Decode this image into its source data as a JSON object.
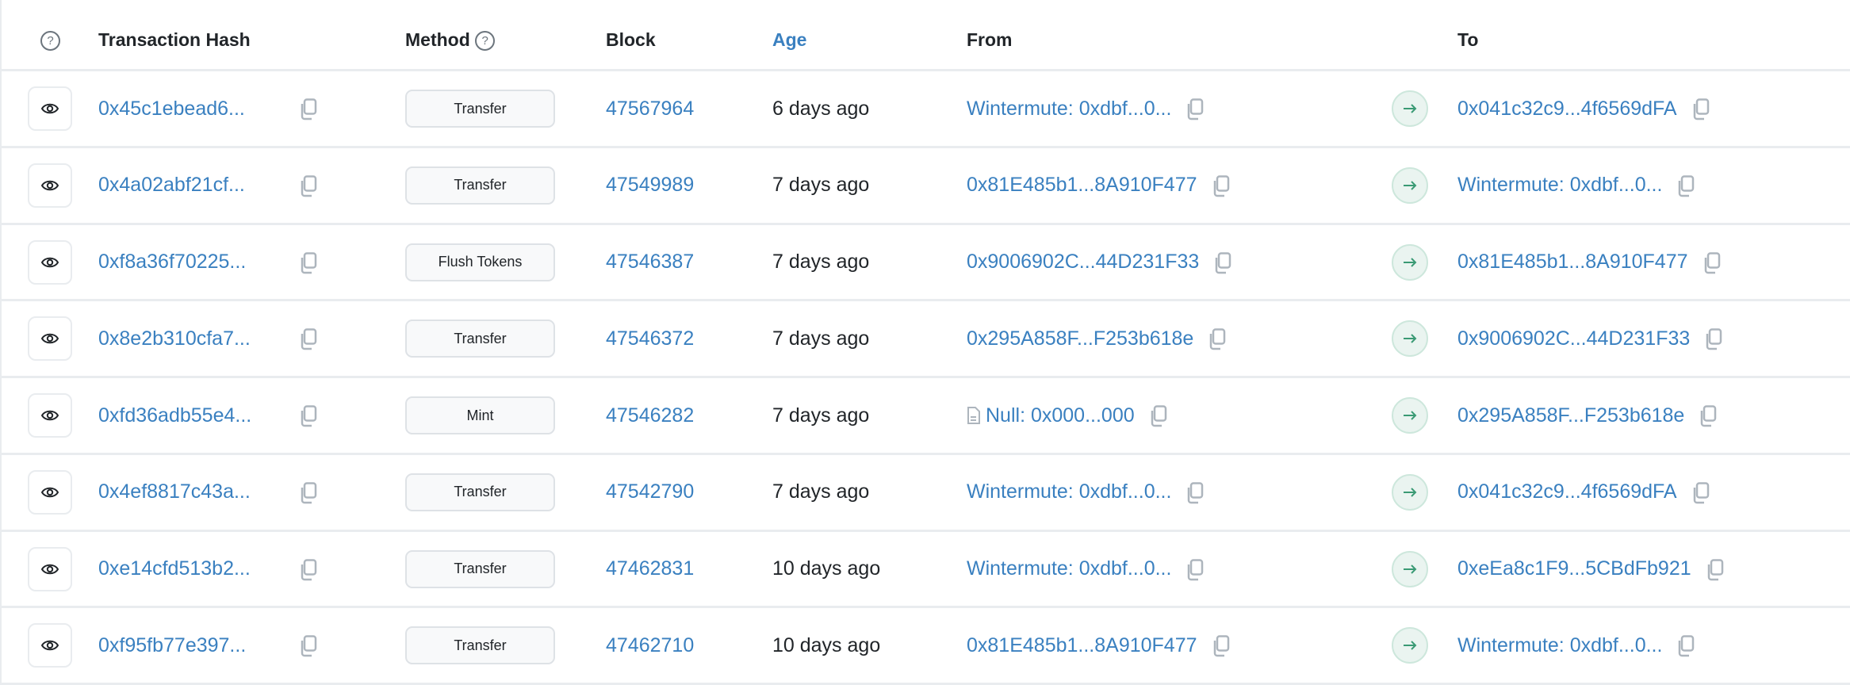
{
  "colors": {
    "link": "#3a80c0",
    "arrow": "#3a9a74",
    "border": "#e9ecef"
  },
  "header": {
    "help_icon": "question-circle-icon",
    "hash": "Transaction Hash",
    "method": "Method",
    "block": "Block",
    "age": "Age",
    "from": "From",
    "to": "To"
  },
  "rows": [
    {
      "hash": "0x45c1ebead6...",
      "method": "Transfer",
      "block": "47567964",
      "age": "6 days ago",
      "from": "Wintermute: 0xdbf...0...",
      "from_icon": "",
      "to": "0x041c32c9...4f6569dFA"
    },
    {
      "hash": "0x4a02abf21cf...",
      "method": "Transfer",
      "block": "47549989",
      "age": "7 days ago",
      "from": "0x81E485b1...8A910F477",
      "from_icon": "",
      "to": "Wintermute: 0xdbf...0..."
    },
    {
      "hash": "0xf8a36f70225...",
      "method": "Flush Tokens",
      "block": "47546387",
      "age": "7 days ago",
      "from": "0x9006902C...44D231F33",
      "from_icon": "",
      "to": "0x81E485b1...8A910F477"
    },
    {
      "hash": "0x8e2b310cfa7...",
      "method": "Transfer",
      "block": "47546372",
      "age": "7 days ago",
      "from": "0x295A858F...F253b618e",
      "from_icon": "",
      "to": "0x9006902C...44D231F33"
    },
    {
      "hash": "0xfd36adb55e4...",
      "method": "Mint",
      "block": "47546282",
      "age": "7 days ago",
      "from": "Null: 0x000...000",
      "from_icon": "document-icon",
      "to": "0x295A858F...F253b618e"
    },
    {
      "hash": "0x4ef8817c43a...",
      "method": "Transfer",
      "block": "47542790",
      "age": "7 days ago",
      "from": "Wintermute: 0xdbf...0...",
      "from_icon": "",
      "to": "0x041c32c9...4f6569dFA"
    },
    {
      "hash": "0xe14cfd513b2...",
      "method": "Transfer",
      "block": "47462831",
      "age": "10 days ago",
      "from": "Wintermute: 0xdbf...0...",
      "from_icon": "",
      "to": "0xeEa8c1F9...5CBdFb921"
    },
    {
      "hash": "0xf95fb77e397...",
      "method": "Transfer",
      "block": "47462710",
      "age": "10 days ago",
      "from": "0x81E485b1...8A910F477",
      "from_icon": "",
      "to": "Wintermute: 0xdbf...0..."
    }
  ]
}
